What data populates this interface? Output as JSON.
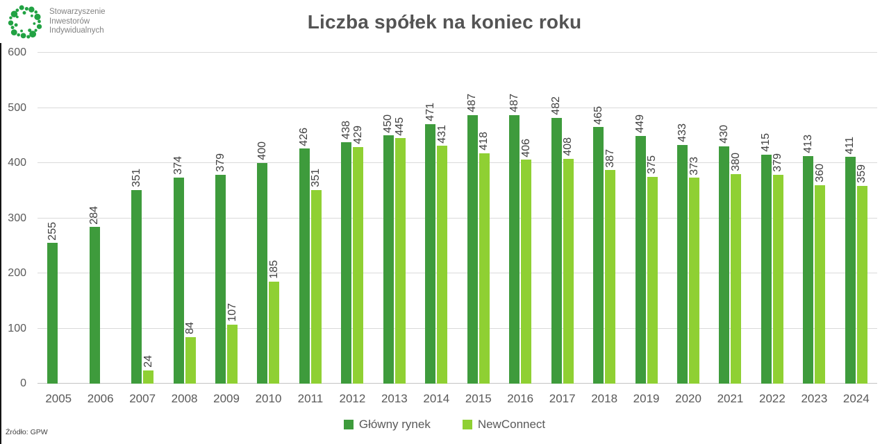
{
  "logo": {
    "name": "Stowarzyszenie Inwestorów Indywidualnych",
    "lines": [
      "Stowarzyszenie",
      "Inwestorów",
      "Indywidualnych"
    ],
    "color": "#21a243"
  },
  "source": "Źródło: GPW",
  "chart_data": {
    "type": "bar",
    "title": "Liczba spółek na koniec roku",
    "categories": [
      "2005",
      "2006",
      "2007",
      "2008",
      "2009",
      "2010",
      "2011",
      "2012",
      "2013",
      "2014",
      "2015",
      "2016",
      "2017",
      "2018",
      "2019",
      "2020",
      "2021",
      "2022",
      "2023",
      "2024"
    ],
    "series": [
      {
        "name": "Główny rynek",
        "color": "#3E9B3C",
        "values": [
          255,
          284,
          351,
          374,
          379,
          400,
          426,
          438,
          450,
          471,
          487,
          487,
          482,
          465,
          449,
          433,
          430,
          415,
          413,
          411
        ]
      },
      {
        "name": "NewConnect",
        "color": "#8FD033",
        "values": [
          null,
          null,
          24,
          84,
          107,
          185,
          351,
          429,
          445,
          431,
          418,
          406,
          408,
          387,
          375,
          373,
          380,
          379,
          360,
          359
        ]
      }
    ],
    "ylim": [
      0,
      600
    ],
    "yticks": [
      0,
      100,
      200,
      300,
      400,
      500,
      600
    ],
    "grid": true,
    "gridline_color": "#d9d9d9",
    "legend_position": "bottom",
    "value_labels": "rotated-90"
  }
}
